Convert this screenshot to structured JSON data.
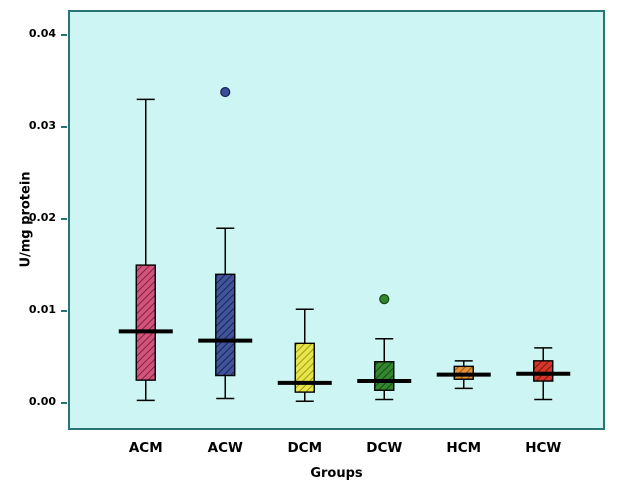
{
  "figure": {
    "background": "#ffffff"
  },
  "plot": {
    "background": "#cdf5f3",
    "border_color": "#2a7474"
  },
  "chart_data": {
    "type": "boxplot",
    "title": "",
    "xlabel": "Groups",
    "ylabel": "U/mg protein",
    "ylim": [
      -0.0027,
      0.0425
    ],
    "yticks": [
      0,
      0.01,
      0.02,
      0.03,
      0.04
    ],
    "ytick_labels": [
      "0.00",
      "0.01",
      "0.02",
      "0.03",
      "0.04"
    ],
    "grid": false,
    "legend": false,
    "categories": [
      "ACM",
      "ACW",
      "DCM",
      "DCW",
      "HCM",
      "HCW"
    ],
    "series": [
      {
        "name": "ACM",
        "whisker_low": 0.0003,
        "q1": 0.0025,
        "median": 0.0078,
        "q3": 0.015,
        "whisker_high": 0.033,
        "outliers": [],
        "fill": "#d4537b",
        "hatch": "#6e1f3c",
        "outlier_color": "#d4537b"
      },
      {
        "name": "ACW",
        "whisker_low": 0.0005,
        "q1": 0.003,
        "median": 0.0068,
        "q3": 0.014,
        "whisker_high": 0.019,
        "outliers": [
          0.0338
        ],
        "fill": "#41549b",
        "hatch": "#141f4d",
        "outlier_color": "#3a4f96"
      },
      {
        "name": "DCM",
        "whisker_low": 0.0002,
        "q1": 0.0012,
        "median": 0.0022,
        "q3": 0.0065,
        "whisker_high": 0.0102,
        "outliers": [],
        "fill": "#e8e44c",
        "hatch": "#97930f",
        "outlier_color": "#e8e44c"
      },
      {
        "name": "DCW",
        "whisker_low": 0.0004,
        "q1": 0.0014,
        "median": 0.0024,
        "q3": 0.0045,
        "whisker_high": 0.007,
        "outliers": [
          0.0113
        ],
        "fill": "#35842f",
        "hatch": "#0f4a0d",
        "outlier_color": "#35842f"
      },
      {
        "name": "HCM",
        "whisker_low": 0.0016,
        "q1": 0.0026,
        "median": 0.0031,
        "q3": 0.004,
        "whisker_high": 0.0046,
        "outliers": [],
        "fill": "#e3923e",
        "hatch": "#8f5208",
        "outlier_color": "#e3923e"
      },
      {
        "name": "HCW",
        "whisker_low": 0.0004,
        "q1": 0.0024,
        "median": 0.0032,
        "q3": 0.0046,
        "whisker_high": 0.006,
        "outliers": [],
        "fill": "#d3362a",
        "hatch": "#731409",
        "outlier_color": "#d3362a"
      }
    ]
  }
}
